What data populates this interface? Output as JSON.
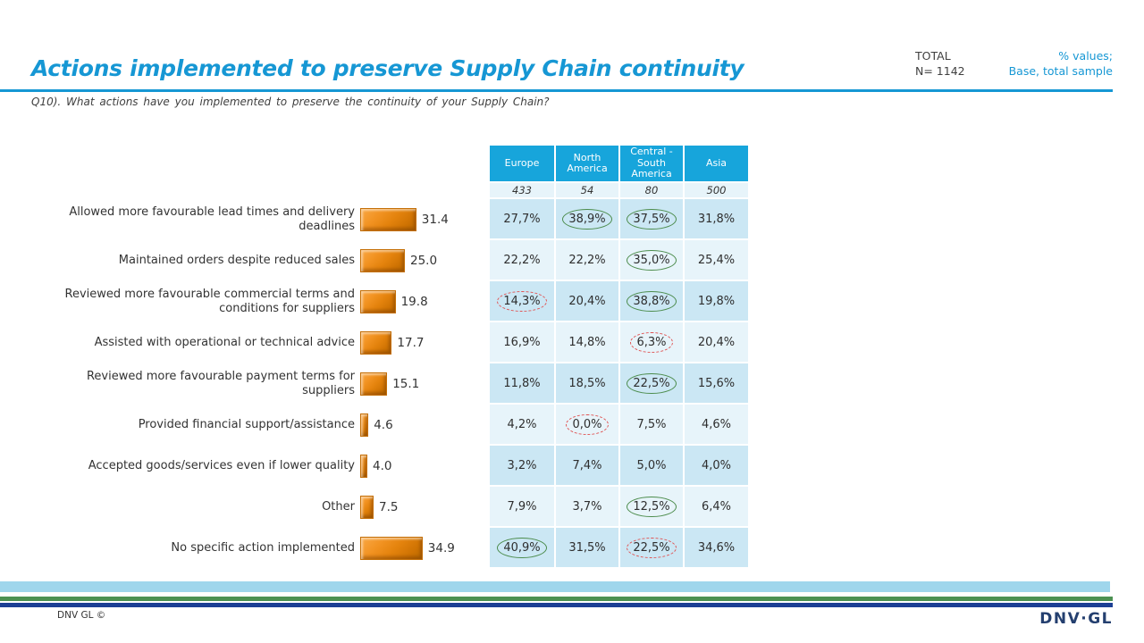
{
  "header": {
    "title": "Actions implemented to preserve Supply Chain continuity",
    "total_label": "TOTAL",
    "total_n": "N= 1142",
    "note_line1": "% values;",
    "note_line2": "Base, total sample",
    "question": "Q10). What actions have you implemented to preserve the continuity of your Supply Chain?"
  },
  "table": {
    "columns": [
      "Europe",
      "North America",
      "Central - South America",
      "Asia"
    ],
    "bases": [
      "433",
      "54",
      "80",
      "500"
    ]
  },
  "rows": [
    {
      "label": "Allowed more favourable lead times and delivery deadlines",
      "value": 31.4,
      "value_label": "31.4",
      "cells": [
        {
          "text": "27,7%",
          "highlight": null
        },
        {
          "text": "38,9%",
          "highlight": "green"
        },
        {
          "text": "37,5%",
          "highlight": "green"
        },
        {
          "text": "31,8%",
          "highlight": null
        }
      ]
    },
    {
      "label": "Maintained orders despite reduced sales",
      "value": 25.0,
      "value_label": "25.0",
      "cells": [
        {
          "text": "22,2%",
          "highlight": null
        },
        {
          "text": "22,2%",
          "highlight": null
        },
        {
          "text": "35,0%",
          "highlight": "green"
        },
        {
          "text": "25,4%",
          "highlight": null
        }
      ]
    },
    {
      "label": "Reviewed more favourable commercial terms and conditions for suppliers",
      "value": 19.8,
      "value_label": "19.8",
      "cells": [
        {
          "text": "14,3%",
          "highlight": "red"
        },
        {
          "text": "20,4%",
          "highlight": null
        },
        {
          "text": "38,8%",
          "highlight": "green"
        },
        {
          "text": "19,8%",
          "highlight": null
        }
      ]
    },
    {
      "label": "Assisted with operational or technical advice",
      "value": 17.7,
      "value_label": "17.7",
      "cells": [
        {
          "text": "16,9%",
          "highlight": null
        },
        {
          "text": "14,8%",
          "highlight": null
        },
        {
          "text": "6,3%",
          "highlight": "red"
        },
        {
          "text": "20,4%",
          "highlight": null
        }
      ]
    },
    {
      "label": "Reviewed more favourable payment terms for suppliers",
      "value": 15.1,
      "value_label": "15.1",
      "cells": [
        {
          "text": "11,8%",
          "highlight": null
        },
        {
          "text": "18,5%",
          "highlight": null
        },
        {
          "text": "22,5%",
          "highlight": "green"
        },
        {
          "text": "15,6%",
          "highlight": null
        }
      ]
    },
    {
      "label": "Provided financial support/assistance",
      "value": 4.6,
      "value_label": "4.6",
      "cells": [
        {
          "text": "4,2%",
          "highlight": null
        },
        {
          "text": "0,0%",
          "highlight": "red"
        },
        {
          "text": "7,5%",
          "highlight": null
        },
        {
          "text": "4,6%",
          "highlight": null
        }
      ]
    },
    {
      "label": "Accepted goods/services even if lower quality",
      "value": 4.0,
      "value_label": "4.0",
      "cells": [
        {
          "text": "3,2%",
          "highlight": null
        },
        {
          "text": "7,4%",
          "highlight": null
        },
        {
          "text": "5,0%",
          "highlight": null
        },
        {
          "text": "4,0%",
          "highlight": null
        }
      ]
    },
    {
      "label": "Other",
      "value": 7.5,
      "value_label": "7.5",
      "cells": [
        {
          "text": "7,9%",
          "highlight": null
        },
        {
          "text": "3,7%",
          "highlight": null
        },
        {
          "text": "12,5%",
          "highlight": "green"
        },
        {
          "text": "6,4%",
          "highlight": null
        }
      ]
    },
    {
      "label": "No specific action implemented",
      "value": 34.9,
      "value_label": "34.9",
      "cells": [
        {
          "text": "40,9%",
          "highlight": "green"
        },
        {
          "text": "31,5%",
          "highlight": null
        },
        {
          "text": "22,5%",
          "highlight": "red"
        },
        {
          "text": "34,6%",
          "highlight": null
        }
      ]
    }
  ],
  "footer": {
    "copyright": "DNV GL ©",
    "logo": "DNV·GL"
  },
  "colors": {
    "title_blue": "#1697D4",
    "table_header_blue": "#17A5DB",
    "row_dark_blue": "#CBE7F4",
    "row_light_blue": "#E7F4FA",
    "bar_orange": "#E4830D",
    "highlight_green": "#4C8C4C",
    "highlight_red": "#E05555",
    "stripe_light_blue": "#9FD6EC",
    "stripe_green": "#4C9152",
    "stripe_navy": "#1C3F94"
  },
  "chart_data": {
    "type": "bar",
    "orientation": "horizontal",
    "title": "Actions implemented to preserve Supply Chain continuity",
    "unit": "% values; Base, total sample",
    "total_n": 1142,
    "categories": [
      "Allowed more favourable lead times and delivery deadlines",
      "Maintained orders despite reduced sales",
      "Reviewed more favourable commercial terms and conditions for suppliers",
      "Assisted with operational or technical advice",
      "Reviewed more favourable payment terms for suppliers",
      "Provided financial support/assistance",
      "Accepted goods/services even if lower quality",
      "Other",
      "No specific action implemented"
    ],
    "values": [
      31.4,
      25.0,
      19.8,
      17.7,
      15.1,
      4.6,
      4.0,
      7.5,
      34.9
    ],
    "series": [
      {
        "name": "Europe",
        "base": 433,
        "values": [
          27.7,
          22.2,
          14.3,
          16.9,
          11.8,
          4.2,
          3.2,
          7.9,
          40.9
        ]
      },
      {
        "name": "North America",
        "base": 54,
        "values": [
          38.9,
          22.2,
          20.4,
          14.8,
          18.5,
          0.0,
          7.4,
          3.7,
          31.5
        ]
      },
      {
        "name": "Central - South America",
        "base": 80,
        "values": [
          37.5,
          35.0,
          38.8,
          6.3,
          22.5,
          7.5,
          5.0,
          12.5,
          22.5
        ]
      },
      {
        "name": "Asia",
        "base": 500,
        "values": [
          31.8,
          25.4,
          19.8,
          20.4,
          15.6,
          4.6,
          4.0,
          6.4,
          34.6
        ]
      }
    ],
    "circled_green": [
      [
        "North America",
        0
      ],
      [
        "Central - South America",
        0
      ],
      [
        "Central - South America",
        1
      ],
      [
        "Central - South America",
        2
      ],
      [
        "Central - South America",
        4
      ],
      [
        "Central - South America",
        7
      ],
      [
        "Europe",
        8
      ]
    ],
    "circled_red_dashed": [
      [
        "Europe",
        2
      ],
      [
        "Central - South America",
        3
      ],
      [
        "North America",
        5
      ],
      [
        "Central - South America",
        8
      ]
    ]
  }
}
